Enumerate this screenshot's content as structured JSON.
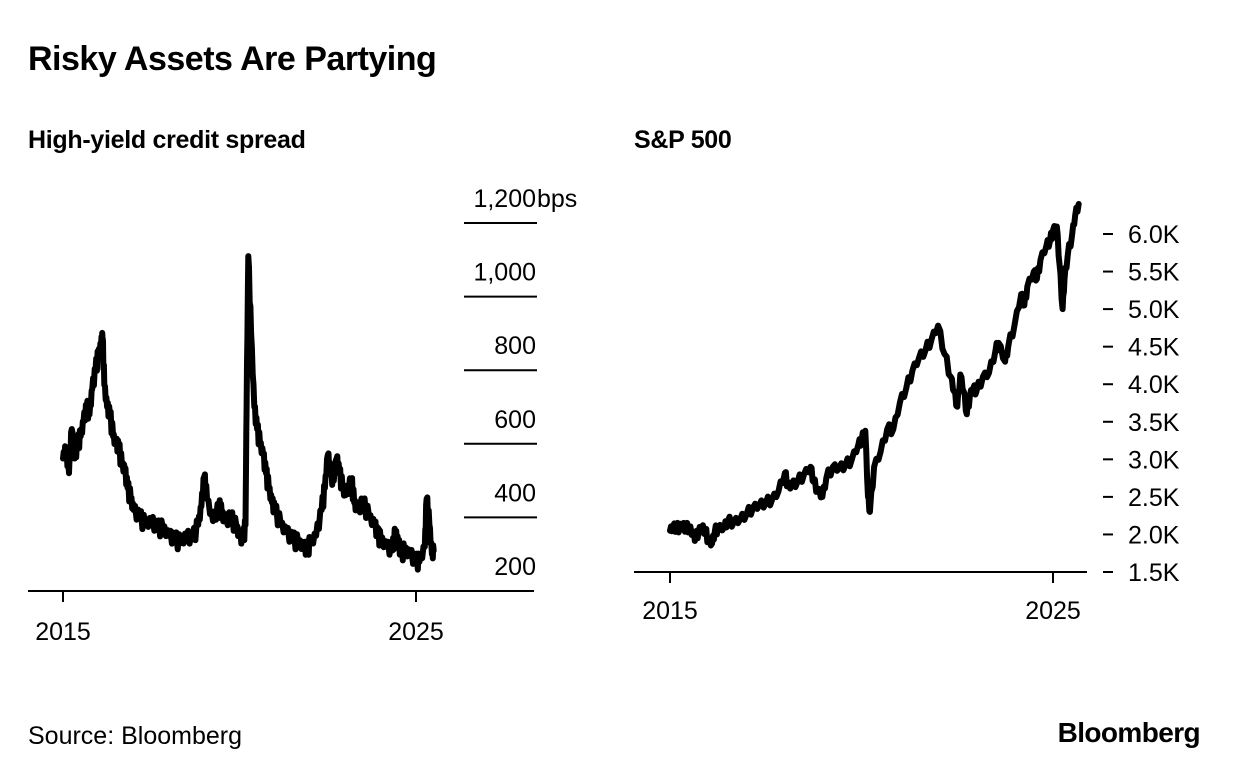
{
  "title": "Risky Assets Are Partying",
  "source": "Source: Bloomberg",
  "logo": "Bloomberg",
  "chart_data": [
    {
      "type": "line",
      "title": "High-yield credit spread",
      "xlabel": "",
      "ylabel": "",
      "y_unit": "bps",
      "ylim": [
        200,
        1200
      ],
      "xlim": [
        2015,
        2026.4
      ],
      "x_ticks": [
        2015,
        2025
      ],
      "x_tick_labels": [
        "2015",
        "2025"
      ],
      "y_ticks": [
        200,
        400,
        600,
        800,
        1000,
        1200
      ],
      "y_tick_labels": [
        "200",
        "400",
        "600",
        "800",
        "1,000",
        "1,200bps"
      ],
      "grid": true,
      "series": [
        {
          "name": "High-yield credit spread",
          "x": [
            2015.0,
            2015.08,
            2015.17,
            2015.25,
            2015.33,
            2015.42,
            2015.5,
            2015.58,
            2015.67,
            2015.75,
            2015.83,
            2015.92,
            2016.0,
            2016.08,
            2016.12,
            2016.17,
            2016.25,
            2016.33,
            2016.42,
            2016.5,
            2016.58,
            2016.67,
            2016.75,
            2016.83,
            2016.92,
            2017.0,
            2017.17,
            2017.33,
            2017.5,
            2017.67,
            2017.83,
            2018.0,
            2018.17,
            2018.33,
            2018.5,
            2018.67,
            2018.83,
            2018.92,
            2019.0,
            2019.08,
            2019.25,
            2019.42,
            2019.5,
            2019.58,
            2019.75,
            2019.92,
            2020.0,
            2020.1,
            2020.17,
            2020.2,
            2020.25,
            2020.33,
            2020.42,
            2020.5,
            2020.58,
            2020.67,
            2020.75,
            2020.83,
            2020.92,
            2021.0,
            2021.17,
            2021.33,
            2021.5,
            2021.67,
            2021.83,
            2021.92,
            2022.0,
            2022.17,
            2022.33,
            2022.42,
            2022.5,
            2022.58,
            2022.67,
            2022.75,
            2022.83,
            2022.92,
            2023.0,
            2023.17,
            2023.25,
            2023.33,
            2023.5,
            2023.67,
            2023.83,
            2023.92,
            2024.0,
            2024.17,
            2024.33,
            2024.42,
            2024.5,
            2024.58,
            2024.67,
            2024.83,
            2025.0,
            2025.1,
            2025.25,
            2025.3,
            2025.38,
            2025.45,
            2025.5
          ],
          "values": [
            560,
            590,
            520,
            640,
            560,
            600,
            620,
            660,
            700,
            680,
            750,
            800,
            840,
            870,
            890,
            760,
            700,
            680,
            620,
            600,
            590,
            540,
            530,
            480,
            450,
            420,
            400,
            380,
            390,
            370,
            370,
            350,
            340,
            330,
            350,
            340,
            380,
            430,
            510,
            450,
            390,
            430,
            410,
            390,
            400,
            370,
            350,
            340,
            380,
            700,
            1110,
            900,
            700,
            640,
            600,
            570,
            520,
            480,
            440,
            420,
            380,
            360,
            340,
            330,
            320,
            310,
            330,
            350,
            420,
            480,
            570,
            520,
            500,
            560,
            520,
            480,
            460,
            500,
            440,
            420,
            440,
            400,
            380,
            350,
            340,
            320,
            310,
            360,
            330,
            300,
            310,
            300,
            280,
            280,
            320,
            450,
            380,
            300,
            310
          ]
        }
      ]
    },
    {
      "type": "line",
      "title": "S&P 500",
      "xlabel": "",
      "ylabel": "",
      "ylim": [
        1500,
        6500
      ],
      "xlim": [
        2014.6,
        2025.9
      ],
      "x_ticks": [
        2015,
        2025
      ],
      "x_tick_labels": [
        "2015",
        "2025"
      ],
      "y_ticks": [
        1500,
        2000,
        2500,
        3000,
        3500,
        4000,
        4500,
        5000,
        5500,
        6000
      ],
      "y_tick_labels": [
        "1.5K",
        "2.0K",
        "2.5K",
        "3.0K",
        "3.5K",
        "4.0K",
        "4.5K",
        "5.0K",
        "5.5K",
        "6.0K"
      ],
      "grid": false,
      "series": [
        {
          "name": "S&P 500",
          "x": [
            2015.0,
            2015.08,
            2015.17,
            2015.25,
            2015.33,
            2015.42,
            2015.5,
            2015.6,
            2015.67,
            2015.75,
            2015.83,
            2015.92,
            2016.0,
            2016.1,
            2016.17,
            2016.25,
            2016.42,
            2016.5,
            2016.67,
            2016.83,
            2017.0,
            2017.17,
            2017.33,
            2017.5,
            2017.67,
            2017.83,
            2018.0,
            2018.08,
            2018.17,
            2018.33,
            2018.5,
            2018.67,
            2018.75,
            2018.85,
            2018.98,
            2019.08,
            2019.25,
            2019.42,
            2019.58,
            2019.75,
            2019.92,
            2020.0,
            2020.1,
            2020.17,
            2020.22,
            2020.33,
            2020.5,
            2020.67,
            2020.83,
            2021.0,
            2021.17,
            2021.33,
            2021.5,
            2021.67,
            2021.83,
            2022.0,
            2022.17,
            2022.33,
            2022.42,
            2022.5,
            2022.58,
            2022.67,
            2022.75,
            2022.83,
            2022.92,
            2023.0,
            2023.17,
            2023.33,
            2023.5,
            2023.58,
            2023.75,
            2023.83,
            2024.0,
            2024.17,
            2024.25,
            2024.33,
            2024.5,
            2024.58,
            2024.67,
            2024.83,
            2024.92,
            2025.0,
            2025.1,
            2025.17,
            2025.25,
            2025.3,
            2025.38,
            2025.5,
            2025.58,
            2025.67
          ],
          "values": [
            2050,
            2100,
            2080,
            2100,
            2110,
            2080,
            2100,
            2000,
            1950,
            2050,
            2080,
            2050,
            1920,
            1880,
            2040,
            2080,
            2100,
            2170,
            2170,
            2200,
            2270,
            2360,
            2390,
            2420,
            2470,
            2570,
            2820,
            2650,
            2650,
            2700,
            2800,
            2900,
            2700,
            2600,
            2500,
            2750,
            2900,
            2880,
            2920,
            3000,
            3200,
            3250,
            3380,
            2500,
            2300,
            2900,
            3100,
            3400,
            3400,
            3750,
            3950,
            4180,
            4350,
            4450,
            4600,
            4780,
            4400,
            4100,
            3900,
            3700,
            4130,
            3900,
            3600,
            3850,
            3950,
            3900,
            4100,
            4150,
            4450,
            4550,
            4300,
            4500,
            4800,
            5200,
            5050,
            5300,
            5500,
            5400,
            5650,
            5850,
            5900,
            6050,
            6100,
            5600,
            5000,
            5400,
            5700,
            6000,
            6250,
            6400
          ]
        }
      ]
    }
  ]
}
